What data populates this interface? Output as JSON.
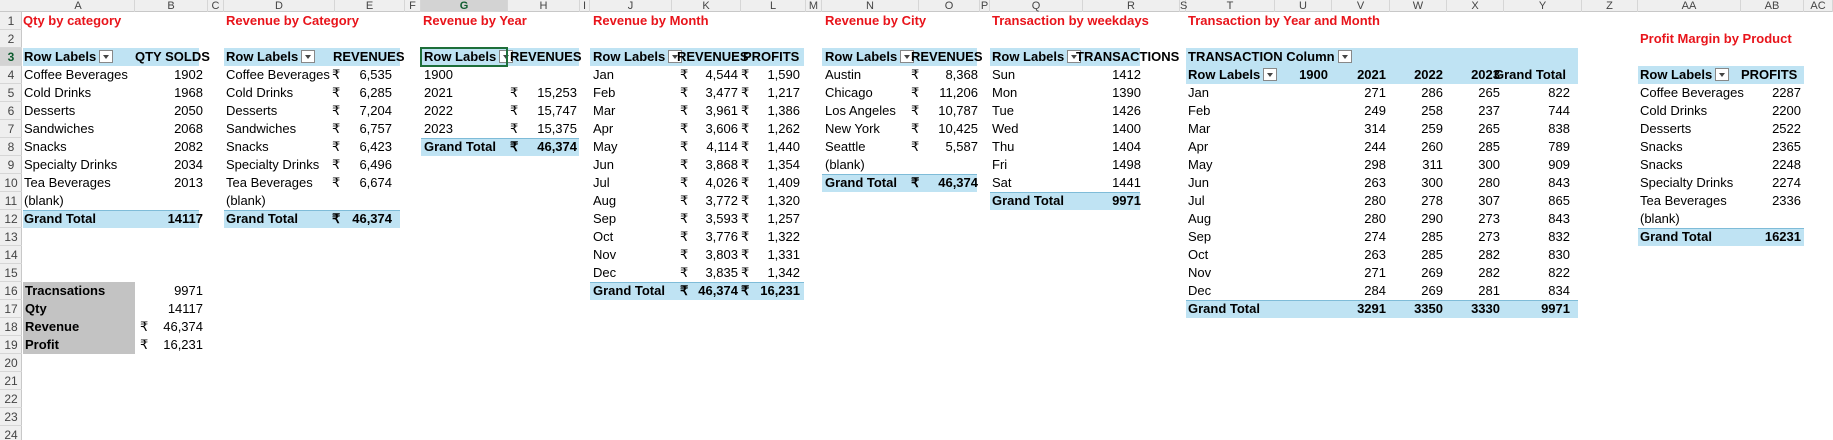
{
  "columns": [
    "A",
    "B",
    "C",
    "D",
    "E",
    "F",
    "G",
    "H",
    "I",
    "J",
    "K",
    "L",
    "M",
    "N",
    "O",
    "P",
    "Q",
    "R",
    "S",
    "T",
    "U",
    "V",
    "W",
    "X",
    "Y",
    "Z",
    "AA",
    "AB",
    "AC"
  ],
  "selected_column": "G",
  "selected_row": "3",
  "rows": [
    "1",
    "2",
    "3",
    "4",
    "5",
    "6",
    "7",
    "8",
    "9",
    "10",
    "11",
    "12",
    "13",
    "14",
    "15",
    "16",
    "17",
    "18",
    "19",
    "20",
    "21",
    "22",
    "23",
    "24"
  ],
  "rupee": "₹",
  "qty_by_category": {
    "title": "Qty by category",
    "h1": "Row Labels",
    "h2": "QTY SOLDS",
    "rows": [
      [
        "Coffee Beverages",
        "1902"
      ],
      [
        "Cold Drinks",
        "1968"
      ],
      [
        "Desserts",
        "2050"
      ],
      [
        "Sandwiches",
        "2068"
      ],
      [
        "Snacks",
        "2082"
      ],
      [
        "Specialty Drinks",
        "2034"
      ],
      [
        "Tea Beverages",
        "2013"
      ],
      [
        "(blank)",
        ""
      ]
    ],
    "total_label": "Grand Total",
    "total_value": "14117"
  },
  "summary": {
    "rows": [
      [
        "Tracnsations",
        "",
        "9971"
      ],
      [
        "Qty",
        "",
        "14117"
      ],
      [
        "Revenue",
        "₹",
        "46,374"
      ],
      [
        "Profit",
        "₹",
        "16,231"
      ]
    ]
  },
  "revenue_by_category": {
    "title": "Revenue by Category",
    "h1": "Row Labels",
    "h2": "REVENUES",
    "rows": [
      [
        "Coffee Beverages",
        "6,535"
      ],
      [
        "Cold Drinks",
        "6,285"
      ],
      [
        "Desserts",
        "7,204"
      ],
      [
        "Sandwiches",
        "6,757"
      ],
      [
        "Snacks",
        "6,423"
      ],
      [
        "Specialty Drinks",
        "6,496"
      ],
      [
        "Tea Beverages",
        "6,674"
      ],
      [
        "(blank)",
        ""
      ]
    ],
    "total_label": "Grand Total",
    "total_value": "46,374"
  },
  "revenue_by_year": {
    "title": "Revenue by Year",
    "h1": "Row Labels",
    "h2": "REVENUES",
    "rows": [
      [
        "1900",
        ""
      ],
      [
        "2021",
        "15,253"
      ],
      [
        "2022",
        "15,747"
      ],
      [
        "2023",
        "15,375"
      ]
    ],
    "total_label": "Grand Total",
    "total_value": "46,374"
  },
  "revenue_by_month": {
    "title": "Revenue by Month",
    "h1": "Row Labels",
    "h2": "REVENUES",
    "h3": "PROFITS",
    "rows": [
      [
        "Jan",
        "4,544",
        "1,590"
      ],
      [
        "Feb",
        "3,477",
        "1,217"
      ],
      [
        "Mar",
        "3,961",
        "1,386"
      ],
      [
        "Apr",
        "3,606",
        "1,262"
      ],
      [
        "May",
        "4,114",
        "1,440"
      ],
      [
        "Jun",
        "3,868",
        "1,354"
      ],
      [
        "Jul",
        "4,026",
        "1,409"
      ],
      [
        "Aug",
        "3,772",
        "1,320"
      ],
      [
        "Sep",
        "3,593",
        "1,257"
      ],
      [
        "Oct",
        "3,776",
        "1,322"
      ],
      [
        "Nov",
        "3,803",
        "1,331"
      ],
      [
        "Dec",
        "3,835",
        "1,342"
      ]
    ],
    "total_label": "Grand Total",
    "total_value": "46,374",
    "total_value2": "16,231"
  },
  "revenue_by_city": {
    "title": "Revenue by City",
    "h1": "Row Labels",
    "h2": "REVENUES",
    "rows": [
      [
        "Austin",
        "8,368"
      ],
      [
        "Chicago",
        "11,206"
      ],
      [
        "Los Angeles",
        "10,787"
      ],
      [
        "New York",
        "10,425"
      ],
      [
        "Seattle",
        "5,587"
      ],
      [
        "(blank)",
        ""
      ]
    ],
    "total_label": "Grand Total",
    "total_value": "46,374"
  },
  "transaction_by_weekdays": {
    "title": "Transaction by weekdays",
    "h1": "Row Labels",
    "h2": "TRANSACTIONS",
    "rows": [
      [
        "Sun",
        "1412"
      ],
      [
        "Mon",
        "1390"
      ],
      [
        "Tue",
        "1426"
      ],
      [
        "Wed",
        "1400"
      ],
      [
        "Thu",
        "1404"
      ],
      [
        "Fri",
        "1498"
      ],
      [
        "Sat",
        "1441"
      ]
    ],
    "total_label": "Grand Total",
    "total_value": "9971"
  },
  "transaction_by_year_month": {
    "title": "Transaction by Year and Month",
    "col_labels": "TRANSACTION Column",
    "h1": "Row Labels",
    "years": [
      "1900",
      "2021",
      "2022",
      "2023",
      "Grand Total"
    ],
    "rows": [
      [
        "Jan",
        "",
        "271",
        "286",
        "265",
        "822"
      ],
      [
        "Feb",
        "",
        "249",
        "258",
        "237",
        "744"
      ],
      [
        "Mar",
        "",
        "314",
        "259",
        "265",
        "838"
      ],
      [
        "Apr",
        "",
        "244",
        "260",
        "285",
        "789"
      ],
      [
        "May",
        "",
        "298",
        "311",
        "300",
        "909"
      ],
      [
        "Jun",
        "",
        "263",
        "300",
        "280",
        "843"
      ],
      [
        "Jul",
        "",
        "280",
        "278",
        "307",
        "865"
      ],
      [
        "Aug",
        "",
        "280",
        "290",
        "273",
        "843"
      ],
      [
        "Sep",
        "",
        "274",
        "285",
        "273",
        "832"
      ],
      [
        "Oct",
        "",
        "263",
        "285",
        "282",
        "830"
      ],
      [
        "Nov",
        "",
        "271",
        "269",
        "282",
        "822"
      ],
      [
        "Dec",
        "",
        "284",
        "269",
        "281",
        "834"
      ]
    ],
    "total": [
      "Grand Total",
      "",
      "3291",
      "3350",
      "3330",
      "9971"
    ]
  },
  "profit_margin_by_product": {
    "title": "Profit Margin by Product",
    "h1": "Row Labels",
    "h2": "PROFITS",
    "rows": [
      [
        "Coffee Beverages",
        "2287"
      ],
      [
        "Cold Drinks",
        "2200"
      ],
      [
        "Desserts",
        "2522"
      ],
      [
        "Snacks",
        "2365"
      ],
      [
        "Snacks",
        "2248"
      ],
      [
        "Specialty Drinks",
        "2274"
      ],
      [
        "Tea Beverages",
        "2336"
      ],
      [
        "(blank)",
        ""
      ]
    ],
    "total_label": "Grand Total",
    "total_value": "16231"
  }
}
